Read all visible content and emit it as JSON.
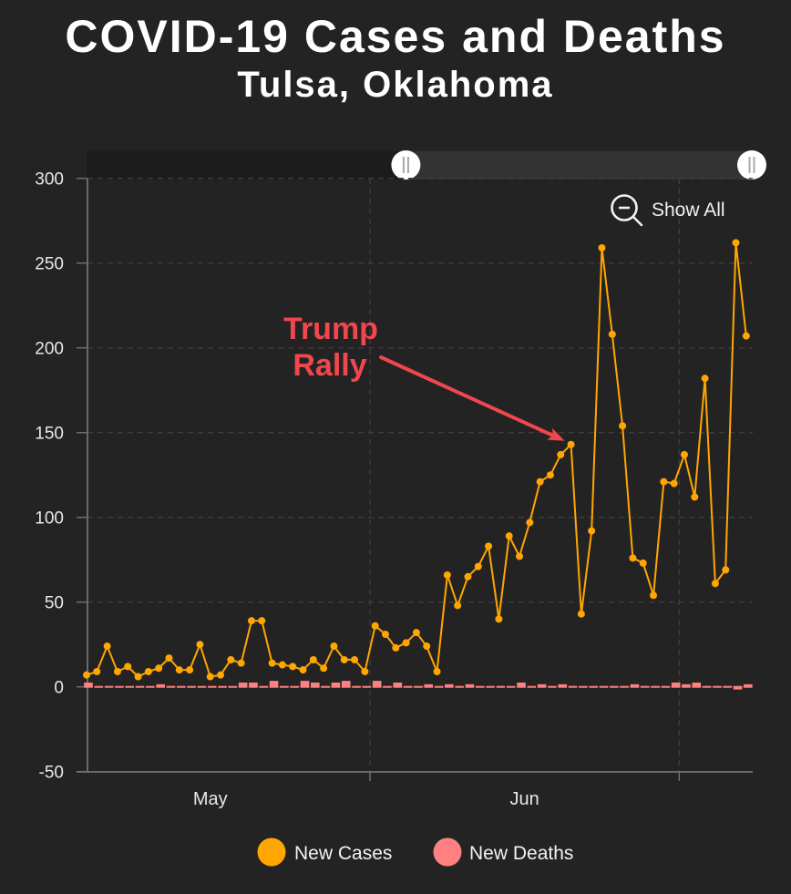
{
  "chart": {
    "title": "COVID-19 Cases and Deaths",
    "subtitle": "Tulsa, Oklahoma",
    "show_all_label": "Show All",
    "show_all_icon": "zoom-out-icon",
    "navigator": {
      "selected_range_fraction": [
        0.48,
        1.0
      ],
      "handle_icon": "grip-handle-icon"
    },
    "colors": {
      "background": "#232323",
      "cases": "#FFA600",
      "deaths": "#FF8080",
      "annotation": "#F0474E",
      "navigator_track": "#1C1C1C",
      "navigator_selected": "#333333",
      "handle": "#FFFFFF",
      "text": "#FFFFFF"
    }
  },
  "chart_data": {
    "type": "line",
    "title": "COVID-19 Cases and Deaths",
    "subtitle": "Tulsa, Oklahoma",
    "xlabel": "",
    "ylabel": "",
    "x": [
      "May 4",
      "May 5",
      "May 6",
      "May 7",
      "May 8",
      "May 9",
      "May 10",
      "May 11",
      "May 12",
      "May 13",
      "May 14",
      "May 15",
      "May 16",
      "May 17",
      "May 18",
      "May 19",
      "May 20",
      "May 21",
      "May 22",
      "May 23",
      "May 24",
      "May 25",
      "May 26",
      "May 27",
      "May 28",
      "May 29",
      "May 30",
      "May 31",
      "Jun 1",
      "Jun 2",
      "Jun 3",
      "Jun 4",
      "Jun 5",
      "Jun 6",
      "Jun 7",
      "Jun 8",
      "Jun 9",
      "Jun 10",
      "Jun 11",
      "Jun 12",
      "Jun 13",
      "Jun 14",
      "Jun 15",
      "Jun 16",
      "Jun 17",
      "Jun 18",
      "Jun 19",
      "Jun 20",
      "Jun 21",
      "Jun 22",
      "Jun 23",
      "Jun 24",
      "Jun 25",
      "Jun 26",
      "Jun 27",
      "Jun 28",
      "Jun 29",
      "Jun 30",
      "Jul 1",
      "Jul 2",
      "Jul 3",
      "Jul 4",
      "Jul 5",
      "Jul 6",
      "Jul 7"
    ],
    "x_tick_labels": [
      "May",
      "Jun"
    ],
    "x_gridlines_at_month_start": [
      "Jun",
      "Jul"
    ],
    "y_ticks": [
      -50,
      0,
      50,
      100,
      150,
      200,
      250,
      300
    ],
    "ylim": [
      -50,
      300
    ],
    "grid": true,
    "legend_position": "bottom-center",
    "series": [
      {
        "name": "New Cases",
        "type": "line",
        "color": "#FFA600",
        "values": [
          7,
          9,
          24,
          9,
          12,
          6,
          9,
          11,
          17,
          10,
          10,
          25,
          6,
          7,
          16,
          14,
          39,
          39,
          14,
          13,
          12,
          10,
          16,
          11,
          24,
          16,
          16,
          9,
          36,
          31,
          23,
          26,
          32,
          24,
          9,
          66,
          48,
          65,
          71,
          83,
          40,
          89,
          77,
          97,
          121,
          125,
          137,
          143,
          43,
          92,
          259,
          208,
          154,
          76,
          73,
          54,
          121,
          120,
          137,
          112,
          182,
          61,
          69,
          262,
          207
        ]
      },
      {
        "name": "New Deaths",
        "type": "bar",
        "color": "#FF8080",
        "values": [
          2,
          0,
          0,
          0,
          0,
          0,
          0,
          1,
          0,
          0,
          0,
          0,
          0,
          0,
          0,
          2,
          2,
          0,
          3,
          0,
          0,
          3,
          2,
          0,
          2,
          3,
          0,
          0,
          3,
          0,
          2,
          0,
          0,
          1,
          0,
          1,
          0,
          1,
          0,
          0,
          0,
          0,
          2,
          0,
          1,
          0,
          1,
          0,
          0,
          0,
          0,
          0,
          0,
          1,
          0,
          0,
          0,
          2,
          1,
          2,
          0,
          0,
          0,
          -1,
          1
        ]
      }
    ],
    "annotations": [
      {
        "lines": [
          "Trump",
          "Rally"
        ],
        "x": "Jun 20",
        "y": 143
      }
    ]
  }
}
